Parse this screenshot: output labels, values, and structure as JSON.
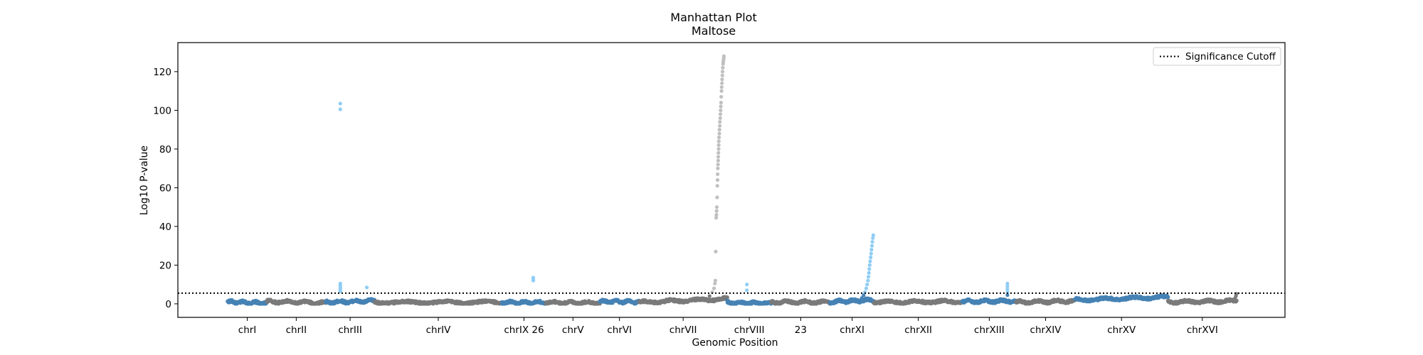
{
  "chart_data": {
    "type": "scatter",
    "title": "Manhattan Plot",
    "subtitle": "Maltose",
    "xlabel": "Genomic Position",
    "ylabel": "Log10 P-value",
    "ylim": [
      -7,
      135
    ],
    "yticks": [
      0,
      20,
      40,
      60,
      80,
      100,
      120
    ],
    "grid": false,
    "legend": {
      "position": "top-right",
      "entries": [
        "Significance Cutoff"
      ]
    },
    "significance_cutoff": 5.5,
    "colors": {
      "even_chrom": "#4682b4",
      "odd_chrom": "#7a7a7a",
      "sig_even": "#8fcdf5",
      "sig_odd": "#c0c0c0",
      "cutoff_line": "#000000"
    },
    "chromosomes": [
      {
        "label": "chrI",
        "start": 0,
        "end": 4,
        "baseline": [
          1.0,
          0.3
        ],
        "hits": []
      },
      {
        "label": "chrII",
        "start": 4,
        "end": 10,
        "baseline": [
          1.2,
          0.5
        ],
        "hits": []
      },
      {
        "label": "chrIII",
        "start": 10,
        "end": 15,
        "baseline": [
          0.8,
          1.5
        ],
        "hits": [
          {
            "pos": 1.5,
            "values": [
              103.5,
              100.5,
              10.5,
              9.5,
              8.5,
              7.5,
              6.5
            ]
          },
          {
            "pos": 4.2,
            "values": [
              8.5
            ]
          }
        ]
      },
      {
        "label": "chrIV",
        "start": 15,
        "end": 28,
        "baseline": [
          0.8,
          0.8
        ],
        "hits": []
      },
      {
        "label": "chrIX 26",
        "start": 28,
        "end": 32.5,
        "baseline": [
          0.7,
          0.7
        ],
        "hits": [
          {
            "pos": 3.2,
            "values": [
              13.5,
              12.5,
              12.0
            ]
          }
        ]
      },
      {
        "label": "chrV",
        "start": 32.5,
        "end": 38,
        "baseline": [
          0.7,
          0.6
        ],
        "hits": []
      },
      {
        "label": "chrVI",
        "start": 38,
        "end": 42,
        "baseline": [
          1.2,
          1.0
        ],
        "hits": []
      },
      {
        "label": "chrVII",
        "start": 42,
        "end": 51,
        "baseline": [
          0.8,
          2.5
        ],
        "peak": [
          [
            0.8,
            4.0
          ],
          [
            0.83,
            6.0
          ],
          [
            0.85,
            8.0
          ],
          [
            0.86,
            10.5
          ],
          [
            0.865,
            12.0
          ],
          [
            0.87,
            27.0
          ],
          [
            0.875,
            44.5
          ],
          [
            0.877,
            46.0
          ],
          [
            0.88,
            48.0
          ],
          [
            0.882,
            50.0
          ],
          [
            0.885,
            55.0
          ],
          [
            0.888,
            61.0
          ],
          [
            0.89,
            64.0
          ],
          [
            0.891,
            67.0
          ],
          [
            0.893,
            70.0
          ],
          [
            0.895,
            72.0
          ],
          [
            0.897,
            74.0
          ],
          [
            0.898,
            76.0
          ],
          [
            0.9,
            78.0
          ],
          [
            0.902,
            80.0
          ],
          [
            0.903,
            82.0
          ],
          [
            0.905,
            84.0
          ],
          [
            0.907,
            86.0
          ],
          [
            0.91,
            88.0
          ],
          [
            0.912,
            90.0
          ],
          [
            0.915,
            92.0
          ],
          [
            0.917,
            94.0
          ],
          [
            0.92,
            96.0
          ],
          [
            0.922,
            98.0
          ],
          [
            0.925,
            100.0
          ],
          [
            0.927,
            102.0
          ],
          [
            0.93,
            104.0
          ],
          [
            0.932,
            107.0
          ],
          [
            0.935,
            110.0
          ],
          [
            0.937,
            112.0
          ],
          [
            0.94,
            114.0
          ],
          [
            0.942,
            116.0
          ],
          [
            0.945,
            118.0
          ],
          [
            0.947,
            120.0
          ],
          [
            0.95,
            122.0
          ],
          [
            0.953,
            124.0
          ],
          [
            0.955,
            125.0
          ],
          [
            0.958,
            126.0
          ],
          [
            0.96,
            127.0
          ],
          [
            0.962,
            128.0
          ]
        ],
        "hits": []
      },
      {
        "label": "chrVIII",
        "start": 51,
        "end": 55.5,
        "baseline": [
          0.6,
          0.3
        ],
        "hits": [
          {
            "pos": 2.0,
            "values": [
              10.0,
              7.0
            ]
          }
        ]
      },
      {
        "label": "23",
        "start": 55.5,
        "end": 61.5,
        "baseline": [
          0.9,
          0.8
        ],
        "hits": []
      },
      {
        "label": "chrXI",
        "start": 61.5,
        "end": 66,
        "baseline": [
          1.0,
          2.0
        ],
        "peak": [
          [
            0.72,
            3.0
          ],
          [
            0.76,
            4.5
          ],
          [
            0.79,
            6.0
          ],
          [
            0.82,
            8.0
          ],
          [
            0.84,
            10.0
          ],
          [
            0.86,
            12.0
          ],
          [
            0.87,
            14.0
          ],
          [
            0.88,
            16.0
          ],
          [
            0.89,
            18.0
          ],
          [
            0.9,
            20.0
          ],
          [
            0.91,
            22.0
          ],
          [
            0.92,
            24.0
          ],
          [
            0.93,
            26.0
          ],
          [
            0.94,
            28.0
          ],
          [
            0.95,
            30.0
          ],
          [
            0.96,
            32.0
          ],
          [
            0.97,
            34.0
          ],
          [
            0.98,
            35.5
          ]
        ],
        "hits": []
      },
      {
        "label": "chrXII",
        "start": 66,
        "end": 75,
        "baseline": [
          0.9,
          1.2
        ],
        "hits": []
      },
      {
        "label": "chrXIII",
        "start": 75,
        "end": 80.5,
        "baseline": [
          1.2,
          1.5
        ],
        "hits": [
          {
            "pos": 4.6,
            "values": [
              10.5,
              9.0,
              7.5,
              6.0,
              4.5
            ]
          }
        ]
      },
      {
        "label": "chrXIV",
        "start": 80.5,
        "end": 86.5,
        "baseline": [
          0.8,
          1.5
        ],
        "hits": []
      },
      {
        "label": "chrXV",
        "start": 86.5,
        "end": 96,
        "baseline": [
          2.0,
          3.5
        ],
        "hits": []
      },
      {
        "label": "chrXVI",
        "start": 96,
        "end": 103,
        "baseline": [
          0.9,
          1.5
        ],
        "peak": [
          [
            0.98,
            3.0
          ],
          [
            0.99,
            4.0
          ],
          [
            0.995,
            5.0
          ],
          [
            1.0,
            5.2
          ]
        ],
        "hits": []
      }
    ]
  }
}
